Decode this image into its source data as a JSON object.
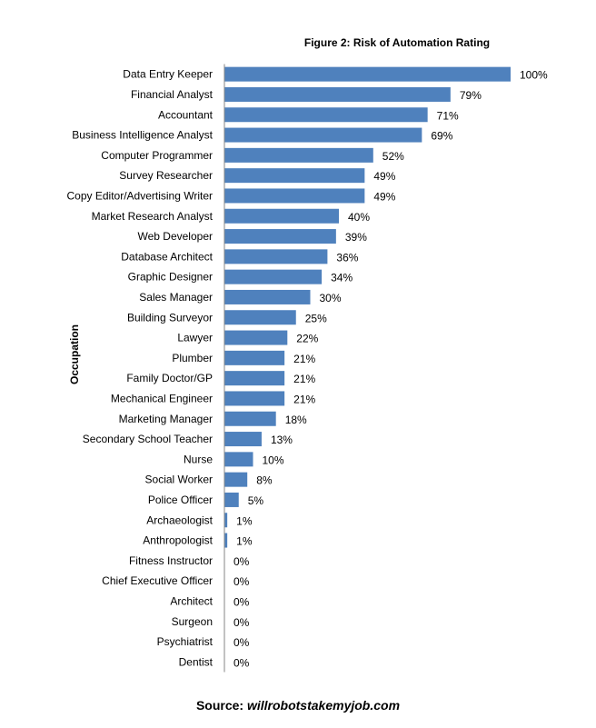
{
  "chart_data": {
    "type": "bar",
    "orientation": "horizontal",
    "title": "Figure 2: Risk of Automation Rating",
    "ylabel": "Occupation",
    "xlabel": "",
    "xlim": [
      0,
      100
    ],
    "grid": false,
    "bar_color": "#4f81bd",
    "categories": [
      "Data Entry Keeper",
      "Financial Analyst",
      "Accountant",
      "Business Intelligence Analyst",
      "Computer Programmer",
      "Survey Researcher",
      "Copy Editor/Advertising  Writer",
      "Market Research Analyst",
      "Web Developer",
      "Database Architect",
      "Graphic Designer",
      "Sales Manager",
      "Building Surveyor",
      "Lawyer",
      "Plumber",
      "Family Doctor/GP",
      "Mechanical Engineer",
      "Marketing Manager",
      "Secondary School Teacher",
      "Nurse",
      "Social Worker",
      "Police Officer",
      "Archaeologist",
      "Anthropologist",
      "Fitness Instructor",
      "Chief Executive Officer",
      "Architect",
      "Surgeon",
      "Psychiatrist",
      "Dentist"
    ],
    "values": [
      100,
      79,
      71,
      69,
      52,
      49,
      49,
      40,
      39,
      36,
      34,
      30,
      25,
      22,
      21,
      21,
      21,
      18,
      13,
      10,
      8,
      5,
      1,
      1,
      0,
      0,
      0,
      0,
      0,
      0
    ],
    "value_labels": [
      "100%",
      "79%",
      "71%",
      "69%",
      "52%",
      "49%",
      "49%",
      "40%",
      "39%",
      "36%",
      "34%",
      "30%",
      "25%",
      "22%",
      "21%",
      "21%",
      "21%",
      "18%",
      "13%",
      "10%",
      "8%",
      "5%",
      "1%",
      "1%",
      "0%",
      "0%",
      "0%",
      "0%",
      "0%",
      "0%"
    ]
  },
  "source": {
    "prefix": "Source: ",
    "link": "willrobotstakemyjob.com"
  }
}
